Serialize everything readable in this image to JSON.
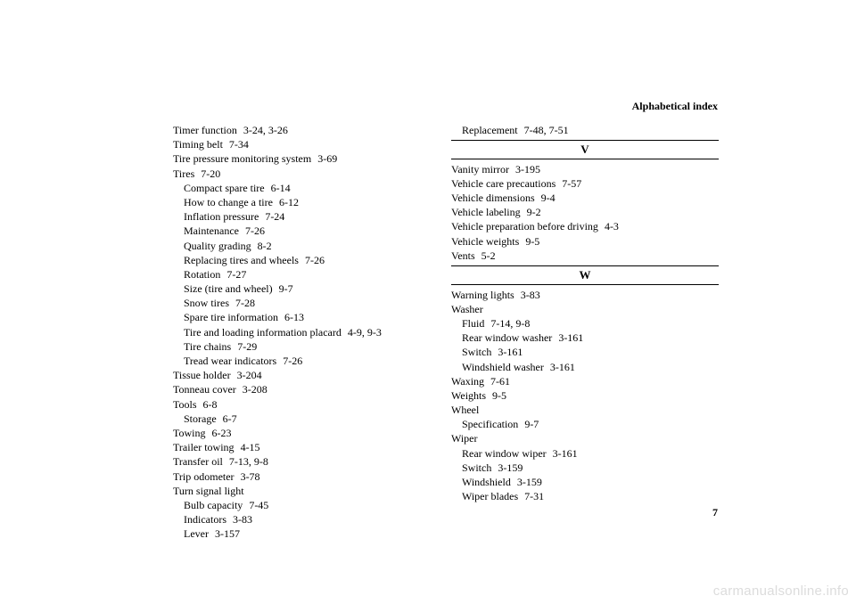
{
  "header": {
    "title": "Alphabetical index"
  },
  "page_number": "7",
  "watermark": "carmanualsonline.info",
  "left_col": [
    {
      "label": "Timer function",
      "refs": "3-24, 3-26",
      "indent": 0
    },
    {
      "label": "Timing belt",
      "refs": "7-34",
      "indent": 0
    },
    {
      "label": "Tire pressure monitoring system",
      "refs": "3-69",
      "indent": 0
    },
    {
      "label": "Tires",
      "refs": "7-20",
      "indent": 0
    },
    {
      "label": "Compact spare tire",
      "refs": "6-14",
      "indent": 1
    },
    {
      "label": "How to change a tire",
      "refs": "6-12",
      "indent": 1
    },
    {
      "label": "Inflation pressure",
      "refs": "7-24",
      "indent": 1
    },
    {
      "label": "Maintenance",
      "refs": "7-26",
      "indent": 1
    },
    {
      "label": "Quality grading",
      "refs": "8-2",
      "indent": 1
    },
    {
      "label": "Replacing tires and wheels",
      "refs": "7-26",
      "indent": 1
    },
    {
      "label": "Rotation",
      "refs": "7-27",
      "indent": 1
    },
    {
      "label": "Size (tire and wheel)",
      "refs": "9-7",
      "indent": 1
    },
    {
      "label": "Snow tires",
      "refs": "7-28",
      "indent": 1
    },
    {
      "label": "Spare tire information",
      "refs": "6-13",
      "indent": 1
    },
    {
      "label": "Tire and loading information placard",
      "refs": "4-9, 9-3",
      "indent": 1
    },
    {
      "label": "Tire chains",
      "refs": "7-29",
      "indent": 1
    },
    {
      "label": "Tread wear indicators",
      "refs": "7-26",
      "indent": 1
    },
    {
      "label": "Tissue holder",
      "refs": "3-204",
      "indent": 0
    },
    {
      "label": "Tonneau cover",
      "refs": "3-208",
      "indent": 0
    },
    {
      "label": "Tools",
      "refs": "6-8",
      "indent": 0
    },
    {
      "label": "Storage",
      "refs": "6-7",
      "indent": 1
    },
    {
      "label": "Towing",
      "refs": "6-23",
      "indent": 0
    },
    {
      "label": "Trailer towing",
      "refs": "4-15",
      "indent": 0
    },
    {
      "label": "Transfer oil",
      "refs": "7-13, 9-8",
      "indent": 0
    },
    {
      "label": "Trip odometer",
      "refs": "3-78",
      "indent": 0
    },
    {
      "label": "Turn signal light",
      "refs": "",
      "indent": 0
    },
    {
      "label": "Bulb capacity",
      "refs": "7-45",
      "indent": 1
    },
    {
      "label": "Indicators",
      "refs": "3-83",
      "indent": 1
    },
    {
      "label": "Lever",
      "refs": "3-157",
      "indent": 1
    }
  ],
  "right_col": {
    "pre": [
      {
        "label": "Replacement",
        "refs": "7-48, 7-51",
        "indent": 1
      }
    ],
    "sections": [
      {
        "letter": "V",
        "entries": [
          {
            "label": "Vanity mirror",
            "refs": "3-195",
            "indent": 0
          },
          {
            "label": "Vehicle care precautions",
            "refs": "7-57",
            "indent": 0
          },
          {
            "label": "Vehicle dimensions",
            "refs": "9-4",
            "indent": 0
          },
          {
            "label": "Vehicle labeling",
            "refs": "9-2",
            "indent": 0
          },
          {
            "label": "Vehicle preparation before driving",
            "refs": "4-3",
            "indent": 0
          },
          {
            "label": "Vehicle weights",
            "refs": "9-5",
            "indent": 0
          },
          {
            "label": "Vents",
            "refs": "5-2",
            "indent": 0
          }
        ]
      },
      {
        "letter": "W",
        "entries": [
          {
            "label": "Warning lights",
            "refs": "3-83",
            "indent": 0
          },
          {
            "label": "Washer",
            "refs": "",
            "indent": 0
          },
          {
            "label": "Fluid",
            "refs": "7-14, 9-8",
            "indent": 1
          },
          {
            "label": "Rear window washer",
            "refs": "3-161",
            "indent": 1
          },
          {
            "label": "Switch",
            "refs": "3-161",
            "indent": 1
          },
          {
            "label": "Windshield washer",
            "refs": "3-161",
            "indent": 1
          },
          {
            "label": "Waxing",
            "refs": "7-61",
            "indent": 0
          },
          {
            "label": "Weights",
            "refs": "9-5",
            "indent": 0
          },
          {
            "label": "Wheel",
            "refs": "",
            "indent": 0
          },
          {
            "label": "Specification",
            "refs": "9-7",
            "indent": 1
          },
          {
            "label": "Wiper",
            "refs": "",
            "indent": 0
          },
          {
            "label": "Rear window wiper",
            "refs": "3-161",
            "indent": 1
          },
          {
            "label": "Switch",
            "refs": "3-159",
            "indent": 1
          },
          {
            "label": "Windshield",
            "refs": "3-159",
            "indent": 1
          },
          {
            "label": "Wiper blades",
            "refs": "7-31",
            "indent": 1
          }
        ]
      }
    ]
  }
}
